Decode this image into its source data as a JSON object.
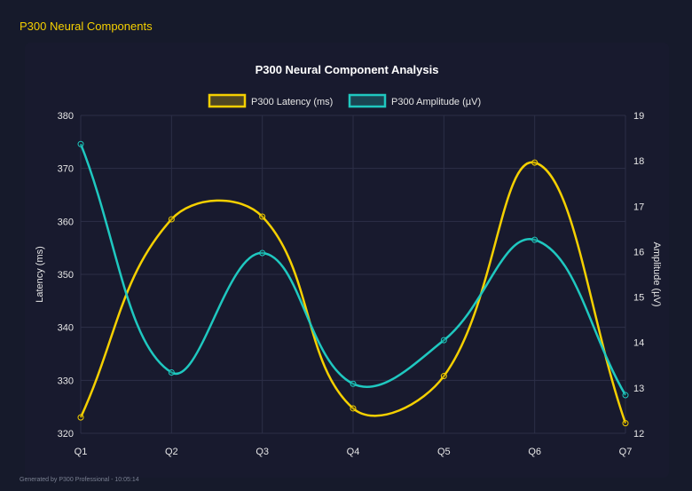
{
  "header": {
    "title": "P300 Neural Components"
  },
  "footer": {
    "text": "Generated by P300 Professional - 10:05:14"
  },
  "colors": {
    "background": "#161a2b",
    "latency": "#f5d000",
    "amplitude": "#1fc8c0",
    "grid": "#2c2f47",
    "text": "#e6e6e6"
  },
  "chart_data": {
    "type": "line",
    "title": "P300 Neural Component Analysis",
    "categories": [
      "Q1",
      "Q2",
      "Q3",
      "Q4",
      "Q5",
      "Q6",
      "Q7"
    ],
    "legend_position": "top",
    "grid": true,
    "y_left": {
      "label": "Latency (ms)",
      "range": [
        320,
        380
      ],
      "ticks": [
        "320",
        "330",
        "340",
        "350",
        "360",
        "370",
        "380"
      ]
    },
    "y_right": {
      "label": "Amplitude (µV)",
      "range": [
        12,
        19
      ],
      "ticks": [
        "12",
        "13",
        "14",
        "15",
        "16",
        "17",
        "18",
        "19"
      ]
    },
    "series": [
      {
        "name": "P300 Latency (ms)",
        "axis": "left",
        "color": "#f5d000",
        "values": [
          323.0,
          360.4,
          360.9,
          324.7,
          330.8,
          371.1,
          321.9
        ]
      },
      {
        "name": "P300 Amplitude (µV)",
        "axis": "right",
        "color": "#1fc8c0",
        "values": [
          18.37,
          13.34,
          15.97,
          13.09,
          14.05,
          16.26,
          12.84
        ]
      }
    ]
  }
}
